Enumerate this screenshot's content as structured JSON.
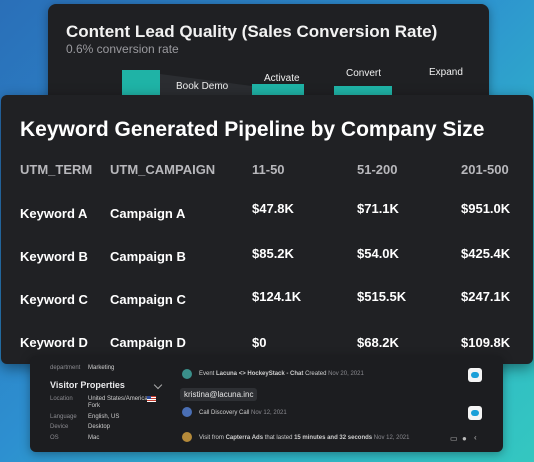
{
  "funnel": {
    "title": "Content Lead Quality (Sales Conversion Rate)",
    "subtitle": "0.6% conversion rate",
    "stages": [
      "Book Demo",
      "Activate",
      "Convert",
      "Expand"
    ],
    "accent": "#1fb3a6"
  },
  "table": {
    "title": "Keyword Generated Pipeline by Company Size",
    "headers": [
      "UTM_TERM",
      "UTM_CAMPAIGN",
      "11-50",
      "51-200",
      "201-500"
    ],
    "rows": [
      [
        "Keyword A",
        "Campaign A",
        "$47.8K",
        "$71.1K",
        "$951.0K"
      ],
      [
        "Keyword B",
        "Campaign B",
        "$85.2K",
        "$54.0K",
        "$425.4K"
      ],
      [
        "Keyword C",
        "Campaign C",
        "$124.1K",
        "$515.5K",
        "$247.1K"
      ],
      [
        "Keyword D",
        "Campaign D",
        "$0",
        "$68.2K",
        "$109.8K"
      ]
    ]
  },
  "crm": {
    "department_label": "department",
    "department_value": "Marketing",
    "visitor_title": "Visitor Properties",
    "props": [
      {
        "label": "Location",
        "value": "United States/American",
        "value2": "Fork"
      },
      {
        "label": "Language",
        "value": "English, US"
      },
      {
        "label": "Device",
        "value": "Desktop"
      },
      {
        "label": "OS",
        "value": "Mac"
      }
    ],
    "email": "kristina@lacuna.inc",
    "events": [
      {
        "prefix": "Event",
        "bold": "Lacuna <> HockeyStack - Chat",
        "suffix": "Created",
        "date": "Nov 20, 2021"
      },
      {
        "prefix": "",
        "bold": "",
        "suffix": "Call Discovery Call",
        "date": "Nov 12, 2021"
      },
      {
        "prefix": "Visit from",
        "bold": "Capterra Ads",
        "mid": "that lasted",
        "bold2": "15 minutes and 32 seconds",
        "date": "Nov 12, 2021"
      }
    ]
  }
}
